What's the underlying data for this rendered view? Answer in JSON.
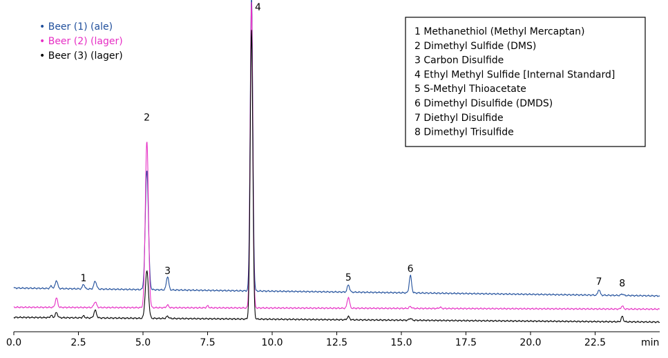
{
  "chart_data": {
    "type": "line",
    "title": "",
    "xlabel": "min",
    "ylabel": "",
    "xlim": [
      0.0,
      25.0
    ],
    "ylim": [
      0,
      100
    ],
    "grid": false,
    "x_ticks": [
      0.0,
      2.5,
      5.0,
      7.5,
      10.0,
      12.5,
      15.0,
      17.5,
      20.0,
      22.5
    ],
    "x_tick_labels": [
      "0.0",
      "2.5",
      "5.0",
      "7.5",
      "10.0",
      "12.5",
      "15.0",
      "17.5",
      "20.0",
      "22.5"
    ],
    "legend_placement": "top-left",
    "series": [
      {
        "name": "Beer (1) (ale)",
        "color": "#1f4e9b",
        "baseline": [
          [
            0,
            10.8
          ],
          [
            25,
            8.3
          ]
        ],
        "peaks": [
          [
            1.45,
            0.8,
            0.04
          ],
          [
            1.65,
            2.6,
            0.045
          ],
          [
            2.7,
            1.5,
            0.04
          ],
          [
            3.15,
            2.5,
            0.05
          ],
          [
            5.15,
            38.0,
            0.06
          ],
          [
            5.95,
            4.3,
            0.045
          ],
          [
            9.2,
            94.0,
            0.05
          ],
          [
            12.95,
            2.3,
            0.045
          ],
          [
            15.35,
            5.5,
            0.045
          ],
          [
            22.65,
            1.8,
            0.04
          ],
          [
            23.55,
            0.5,
            0.04
          ]
        ]
      },
      {
        "name": "Beer (2) (lager)",
        "color": "#e62ec4",
        "baseline": [
          [
            0,
            4.7
          ],
          [
            25,
            4.1
          ]
        ],
        "peaks": [
          [
            1.65,
            3.0,
            0.045
          ],
          [
            3.15,
            1.8,
            0.05
          ],
          [
            5.15,
            53.0,
            0.06
          ],
          [
            5.95,
            0.8,
            0.045
          ],
          [
            7.5,
            0.6,
            0.04
          ],
          [
            9.2,
            97.0,
            0.05
          ],
          [
            12.95,
            3.5,
            0.045
          ],
          [
            15.35,
            0.6,
            0.045
          ],
          [
            16.5,
            0.4,
            0.04
          ],
          [
            23.55,
            1.0,
            0.04
          ]
        ]
      },
      {
        "name": "Beer (3) (lager)",
        "color": "#000000",
        "baseline": [
          [
            0,
            1.5
          ],
          [
            25,
            0.0
          ]
        ],
        "peaks": [
          [
            1.45,
            0.7,
            0.04
          ],
          [
            1.65,
            1.6,
            0.045
          ],
          [
            2.7,
            0.6,
            0.04
          ],
          [
            3.15,
            2.4,
            0.05
          ],
          [
            5.15,
            15.0,
            0.06
          ],
          [
            5.95,
            0.7,
            0.045
          ],
          [
            9.2,
            92.0,
            0.05
          ],
          [
            12.95,
            1.0,
            0.045
          ],
          [
            15.35,
            0.6,
            0.045
          ],
          [
            23.55,
            1.7,
            0.04
          ]
        ]
      }
    ],
    "peak_labels": [
      {
        "text": "1",
        "x": 2.7,
        "y": 14.0
      },
      {
        "text": "2",
        "x": 5.15,
        "y": 65.0
      },
      {
        "text": "3",
        "x": 5.95,
        "y": 16.3
      },
      {
        "text": "4",
        "x": 9.45,
        "y": 100.0
      },
      {
        "text": "5",
        "x": 12.95,
        "y": 14.2
      },
      {
        "text": "6",
        "x": 15.35,
        "y": 17.0
      },
      {
        "text": "7",
        "x": 22.65,
        "y": 12.9
      },
      {
        "text": "8",
        "x": 23.55,
        "y": 12.4
      }
    ],
    "key_items": [
      "1 Methanethiol (Methyl Mercaptan)",
      "2 Dimethyl Sulfide (DMS)",
      "3 Carbon Disulfide",
      "4 Ethyl Methyl Sulfide [Internal Standard]",
      "5 S-Methyl Thioacetate",
      "6 Dimethyl Disulfide (DMDS)",
      "7 Diethyl Disulfide",
      "8 Dimethyl Trisulfide"
    ],
    "legend_marker": "•"
  }
}
